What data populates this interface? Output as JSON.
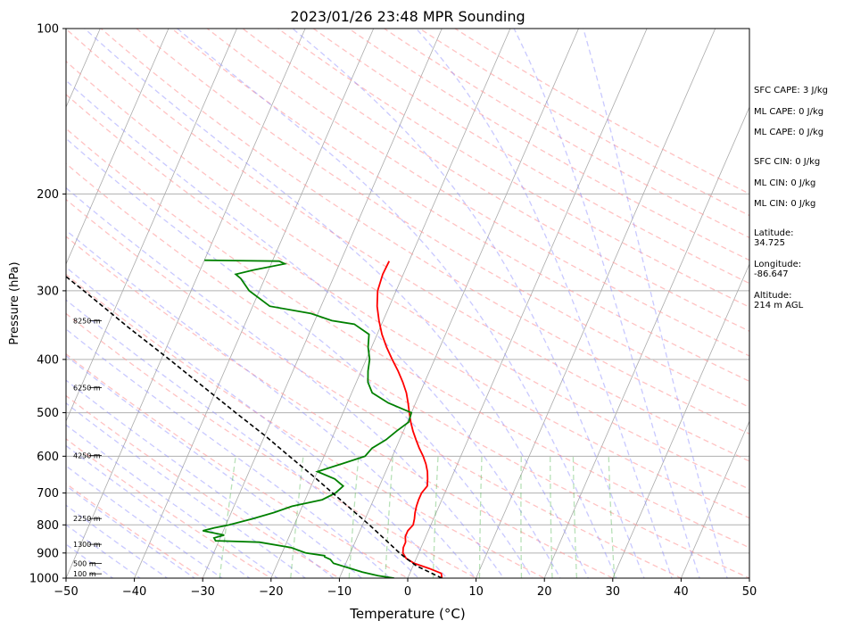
{
  "chart_data": {
    "type": "skew-t log-p sounding",
    "title": "2023/01/26 23:48 MPR Sounding",
    "xlabel": "Temperature (°C)",
    "ylabel": "Pressure (hPa)",
    "xlim": [
      -50,
      50
    ],
    "ylim": [
      1000,
      100
    ],
    "y_scale": "log",
    "x_ticks": [
      "−50",
      "−40",
      "−30",
      "−20",
      "−10",
      "0",
      "10",
      "20",
      "30",
      "40",
      "50"
    ],
    "y_ticks": [
      "100",
      "200",
      "300",
      "400",
      "500",
      "600",
      "700",
      "800",
      "900",
      "1000"
    ],
    "grid": "horizontal isobars",
    "background_lines": [
      "dry adiabats (red dashed)",
      "moist adiabats (blue dashed)",
      "mixing ratio lines (green dashed)",
      "isotherms (gray solid)"
    ],
    "series": [
      {
        "role": "temperature",
        "color": "#ff0000",
        "points": [
          [
            1000,
            5.0
          ],
          [
            980,
            4.6
          ],
          [
            960,
            2.5
          ],
          [
            940,
            0.0
          ],
          [
            920,
            -1.5
          ],
          [
            900,
            -2.3
          ],
          [
            880,
            -2.6
          ],
          [
            860,
            -2.6
          ],
          [
            840,
            -3.0
          ],
          [
            820,
            -3.0
          ],
          [
            800,
            -2.6
          ],
          [
            780,
            -2.8
          ],
          [
            760,
            -3.1
          ],
          [
            740,
            -3.3
          ],
          [
            720,
            -3.4
          ],
          [
            700,
            -3.4
          ],
          [
            680,
            -3.0
          ],
          [
            660,
            -3.4
          ],
          [
            640,
            -3.9
          ],
          [
            620,
            -4.6
          ],
          [
            600,
            -5.5
          ],
          [
            580,
            -6.6
          ],
          [
            560,
            -7.6
          ],
          [
            540,
            -8.6
          ],
          [
            520,
            -9.5
          ],
          [
            500,
            -10.3
          ],
          [
            480,
            -11.1
          ],
          [
            460,
            -12.0
          ],
          [
            440,
            -13.2
          ],
          [
            420,
            -14.6
          ],
          [
            400,
            -16.2
          ],
          [
            380,
            -17.8
          ],
          [
            360,
            -19.3
          ],
          [
            340,
            -20.6
          ],
          [
            320,
            -21.8
          ],
          [
            300,
            -22.7
          ],
          [
            280,
            -23.0
          ],
          [
            265,
            -22.9
          ]
        ]
      },
      {
        "role": "dewpoint",
        "color": "#008000",
        "points": [
          [
            1000,
            -2.0
          ],
          [
            990,
            -4.5
          ],
          [
            975,
            -7.0
          ],
          [
            960,
            -9.0
          ],
          [
            940,
            -11.8
          ],
          [
            925,
            -12.5
          ],
          [
            915,
            -13.5
          ],
          [
            910,
            -13.6
          ],
          [
            900,
            -16.5
          ],
          [
            880,
            -19.0
          ],
          [
            860,
            -24.0
          ],
          [
            855,
            -30.5
          ],
          [
            845,
            -30.9
          ],
          [
            835,
            -29.6
          ],
          [
            820,
            -33.0
          ],
          [
            810,
            -31.5
          ],
          [
            800,
            -29.5
          ],
          [
            780,
            -26.5
          ],
          [
            760,
            -23.8
          ],
          [
            740,
            -21.5
          ],
          [
            720,
            -17.5
          ],
          [
            700,
            -16.0
          ],
          [
            680,
            -15.3
          ],
          [
            660,
            -17.0
          ],
          [
            640,
            -20.0
          ],
          [
            620,
            -17.0
          ],
          [
            600,
            -14.0
          ],
          [
            580,
            -13.5
          ],
          [
            560,
            -12.0
          ],
          [
            540,
            -11.0
          ],
          [
            520,
            -9.8
          ],
          [
            500,
            -10.0
          ],
          [
            480,
            -14.0
          ],
          [
            460,
            -17.0
          ],
          [
            440,
            -18.3
          ],
          [
            420,
            -19.0
          ],
          [
            400,
            -19.5
          ],
          [
            380,
            -20.5
          ],
          [
            360,
            -21.2
          ],
          [
            345,
            -24.0
          ],
          [
            340,
            -27.5
          ],
          [
            330,
            -31.0
          ],
          [
            320,
            -37.5
          ],
          [
            300,
            -41.5
          ],
          [
            285,
            -43.5
          ],
          [
            280,
            -44.5
          ],
          [
            275,
            -42.2
          ],
          [
            268,
            -38.0
          ],
          [
            265,
            -39.0
          ],
          [
            264,
            -50.0
          ]
        ]
      },
      {
        "role": "parcel",
        "color": "#000000",
        "style": "dashed",
        "points": [
          [
            1000,
            5.0
          ],
          [
            950,
            0.5
          ],
          [
            920,
            -1.5
          ],
          [
            900,
            -2.8
          ],
          [
            850,
            -5.8
          ],
          [
            800,
            -9.0
          ],
          [
            750,
            -12.6
          ],
          [
            700,
            -16.4
          ],
          [
            650,
            -20.5
          ],
          [
            600,
            -25.1
          ],
          [
            550,
            -30.0
          ],
          [
            500,
            -35.7
          ],
          [
            450,
            -41.9
          ],
          [
            400,
            -48.8
          ],
          [
            350,
            -56.8
          ],
          [
            300,
            -65.7
          ],
          [
            265,
            -73.0
          ]
        ]
      }
    ],
    "height_labels": [
      "100 m",
      "500 m",
      "1300 m",
      "2250 m",
      "4250 m",
      "6250 m",
      "8250 m"
    ],
    "height_label_pressures": [
      982,
      940,
      868,
      779,
      598,
      450,
      340
    ],
    "indices": {
      "sfc_cape": "SFC CAPE: 3 J/kg",
      "ml_cape_1": "ML CAPE: 0 J/kg",
      "ml_cape_2": "ML CAPE: 0 J/kg",
      "sfc_cin": "SFC CIN: 0 J/kg",
      "ml_cin_1": "ML CIN: 0 J/kg",
      "ml_cin_2": "ML CIN: 0 J/kg",
      "lat_label": "Latitude:",
      "lat_value": "34.725",
      "lon_label": "Longitude:",
      "lon_value": "-86.647",
      "alt_label": "Altitude:",
      "alt_value": "214 m AGL"
    }
  }
}
